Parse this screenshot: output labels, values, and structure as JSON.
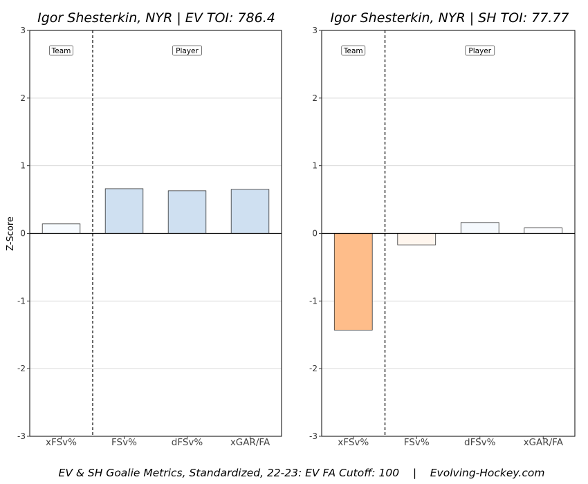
{
  "caption": "EV & SH Goalie Metrics, Standardized, 22-23: EV FA Cutoff: 100    |    Evolving-Hockey.com",
  "ylabel": "Z-Score",
  "chart_data": [
    {
      "type": "bar",
      "title": "Igor Shesterkin, NYR | EV TOI: 786.4",
      "categories": [
        "xFSv%",
        "FSv%",
        "dFSv%",
        "xGAR/FA"
      ],
      "values": [
        0.14,
        0.66,
        0.63,
        0.65
      ],
      "colors": [
        "#f7fbff",
        "#cfe0f1",
        "#cfe0f1",
        "#cfe0f1"
      ],
      "ylim": [
        -3,
        3
      ],
      "yticks": [
        -3,
        -2,
        -1,
        0,
        1,
        2,
        3
      ],
      "grid": true,
      "group_labels": [
        "Team",
        "Player"
      ]
    },
    {
      "type": "bar",
      "title": "Igor Shesterkin, NYR | SH TOI: 77.77",
      "categories": [
        "xFSv%",
        "FSv%",
        "dFSv%",
        "xGAR/FA"
      ],
      "values": [
        -1.43,
        -0.17,
        0.16,
        0.08
      ],
      "colors": [
        "#febd8a",
        "#fff6ee",
        "#f5f9fd",
        "#fbfcfe"
      ],
      "ylim": [
        -3,
        3
      ],
      "yticks": [
        -3,
        -2,
        -1,
        0,
        1,
        2,
        3
      ],
      "grid": true,
      "group_labels": [
        "Team",
        "Player"
      ]
    }
  ]
}
